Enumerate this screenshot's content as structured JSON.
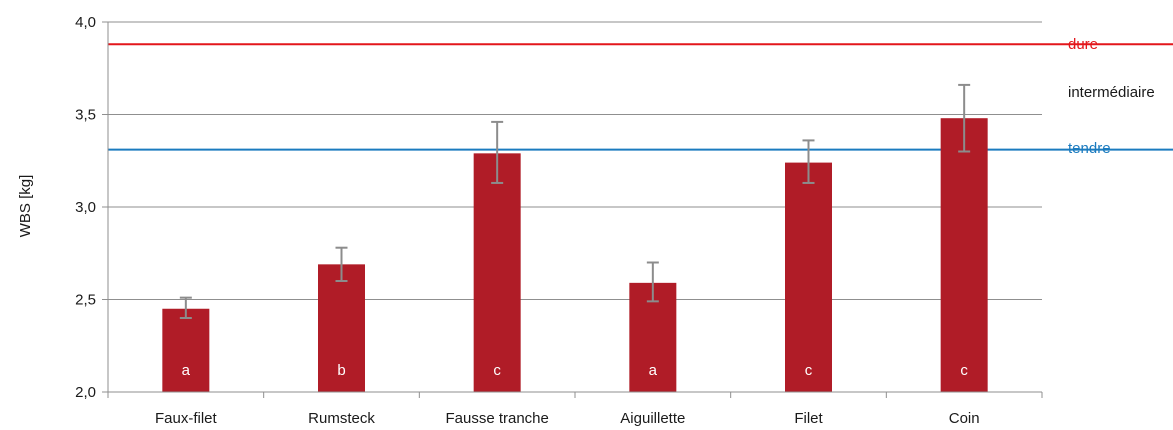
{
  "chart_data": {
    "type": "bar",
    "categories": [
      "Faux-filet",
      "Rumsteck",
      "Fausse tranche",
      "Aiguillette",
      "Filet",
      "Coin"
    ],
    "values": [
      2.45,
      2.69,
      3.29,
      2.59,
      3.24,
      3.48
    ],
    "error_low": [
      2.4,
      2.6,
      3.13,
      2.49,
      3.13,
      3.3
    ],
    "error_high": [
      2.51,
      2.78,
      3.46,
      2.7,
      3.36,
      3.66
    ],
    "group_letters": [
      "a",
      "b",
      "c",
      "a",
      "c",
      "c"
    ],
    "ylabel": "WBS [kg]",
    "xlabel": "",
    "ylim": [
      2.0,
      4.0
    ],
    "yticks": [
      2.0,
      2.5,
      3.0,
      3.5,
      4.0
    ],
    "ytick_labels": [
      "2,0",
      "2,5",
      "3,0",
      "3,5",
      "4,0"
    ],
    "grid": true,
    "reference_lines": [
      {
        "value": 3.88,
        "color": "#e3161b"
      },
      {
        "value": 3.31,
        "color": "#1b7bbf"
      }
    ],
    "zones": [
      {
        "label": "dure",
        "color": "#e3161b"
      },
      {
        "label": "intermédiaire",
        "color": "#1a1a1a"
      },
      {
        "label": "tendre",
        "color": "#1b7bbf"
      }
    ],
    "colors": {
      "bar": "#b01c27",
      "error_bar": "#8c8c8c",
      "grid": "#8f8f8f",
      "axis": "#8f8f8f"
    }
  }
}
